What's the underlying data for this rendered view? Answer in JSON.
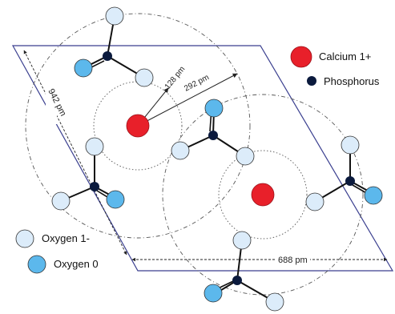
{
  "legend": {
    "calcium_label": "Calcium 1+",
    "phosphorus_label": "Phosphorus",
    "oxygen_minus_label": "Oxygen 1-",
    "oxygen_zero_label": "Oxygen 0"
  },
  "dimensions": {
    "radius_inner": "128 pm",
    "radius_outer": "292 pm",
    "cell_side": "942 pm",
    "cell_bottom": "688 pm"
  },
  "colors": {
    "calcium": "#e8202a",
    "phosphorus": "#0b1a3d",
    "oxygen_minus": "#dcecfa",
    "oxygen_zero": "#5cb8ec",
    "cell_outline": "#3a3f8f"
  }
}
